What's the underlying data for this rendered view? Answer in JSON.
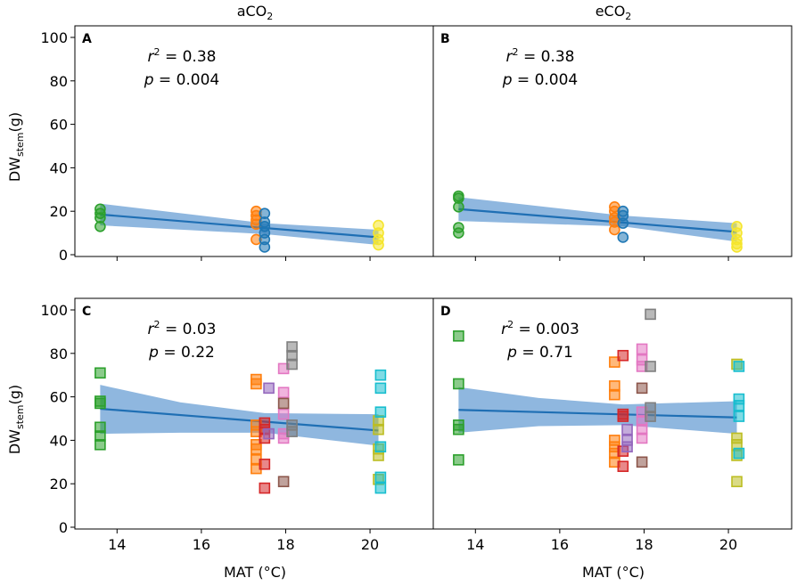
{
  "figure": {
    "column_titles": {
      "left": "aCO",
      "left_sub": "2",
      "right": "eCO",
      "right_sub": "2"
    },
    "xlabel": "MAT (°C)",
    "ylabel_main": "DW",
    "ylabel_sub": "stem",
    "ylabel_unit": "(g)",
    "x_ticks": [
      14,
      16,
      18,
      20
    ],
    "y_ticks": [
      0,
      20,
      40,
      60,
      80,
      100
    ],
    "colors": {
      "green": "#2ca02c",
      "orange": "#ff7f0e",
      "blue": "#1f77b4",
      "yellow": "#f5e52c",
      "red": "#d62728",
      "purple": "#9467bd",
      "brown": "#8c564b",
      "pink": "#e377c2",
      "gray": "#7f7f7f",
      "olive": "#bcbd22",
      "cyan": "#17becf",
      "fit_line": "#1f6fb4",
      "band": "#6a9fd4"
    }
  },
  "chart_data": [
    {
      "type": "scatter",
      "panel": "A",
      "marker": "circle",
      "xlim": [
        13.0,
        21.5
      ],
      "ylim": [
        0,
        100
      ],
      "r2_label": "r",
      "r2_value": "= 0.38",
      "p_label": "p",
      "p_value": "= 0.004",
      "fit": {
        "x": [
          13.6,
          20.2
        ],
        "y": [
          18.5,
          8.0
        ]
      },
      "band": {
        "x": [
          13.6,
          17.5,
          20.2
        ],
        "upper": [
          23.5,
          14.5,
          11.5
        ],
        "lower": [
          13.5,
          9.5,
          4.5
        ]
      },
      "points": [
        {
          "x": 13.6,
          "y": 21,
          "c": "green"
        },
        {
          "x": 13.6,
          "y": 19,
          "c": "green"
        },
        {
          "x": 13.6,
          "y": 17,
          "c": "green"
        },
        {
          "x": 13.6,
          "y": 13,
          "c": "green"
        },
        {
          "x": 17.3,
          "y": 20,
          "c": "orange"
        },
        {
          "x": 17.3,
          "y": 18,
          "c": "orange"
        },
        {
          "x": 17.3,
          "y": 16,
          "c": "orange"
        },
        {
          "x": 17.3,
          "y": 14,
          "c": "orange"
        },
        {
          "x": 17.3,
          "y": 7,
          "c": "orange"
        },
        {
          "x": 17.5,
          "y": 19,
          "c": "blue"
        },
        {
          "x": 17.5,
          "y": 15,
          "c": "blue"
        },
        {
          "x": 17.5,
          "y": 13,
          "c": "blue"
        },
        {
          "x": 17.5,
          "y": 10,
          "c": "blue"
        },
        {
          "x": 17.5,
          "y": 7,
          "c": "blue"
        },
        {
          "x": 17.5,
          "y": 3.5,
          "c": "blue"
        },
        {
          "x": 20.2,
          "y": 13.5,
          "c": "yellow"
        },
        {
          "x": 20.2,
          "y": 10,
          "c": "yellow"
        },
        {
          "x": 20.2,
          "y": 7,
          "c": "yellow"
        },
        {
          "x": 20.2,
          "y": 4.5,
          "c": "yellow"
        }
      ]
    },
    {
      "type": "scatter",
      "panel": "B",
      "marker": "circle",
      "xlim": [
        13.0,
        21.5
      ],
      "ylim": [
        0,
        100
      ],
      "r2_label": "r",
      "r2_value": "= 0.38",
      "p_label": "p",
      "p_value": "= 0.004",
      "fit": {
        "x": [
          13.6,
          20.2
        ],
        "y": [
          21.0,
          10.5
        ]
      },
      "band": {
        "x": [
          13.6,
          17.5,
          20.2
        ],
        "upper": [
          26.5,
          18.0,
          14.5
        ],
        "lower": [
          15.5,
          13.0,
          6.0
        ]
      },
      "points": [
        {
          "x": 13.6,
          "y": 27,
          "c": "green"
        },
        {
          "x": 13.6,
          "y": 26,
          "c": "green"
        },
        {
          "x": 13.6,
          "y": 22,
          "c": "green"
        },
        {
          "x": 13.6,
          "y": 12.5,
          "c": "green"
        },
        {
          "x": 13.6,
          "y": 10,
          "c": "green"
        },
        {
          "x": 17.3,
          "y": 22,
          "c": "orange"
        },
        {
          "x": 17.3,
          "y": 20,
          "c": "orange"
        },
        {
          "x": 17.3,
          "y": 17,
          "c": "orange"
        },
        {
          "x": 17.3,
          "y": 15,
          "c": "orange"
        },
        {
          "x": 17.3,
          "y": 11.5,
          "c": "orange"
        },
        {
          "x": 17.5,
          "y": 20,
          "c": "blue"
        },
        {
          "x": 17.5,
          "y": 18,
          "c": "blue"
        },
        {
          "x": 17.5,
          "y": 14.5,
          "c": "blue"
        },
        {
          "x": 17.5,
          "y": 8,
          "c": "blue"
        },
        {
          "x": 20.2,
          "y": 13,
          "c": "yellow"
        },
        {
          "x": 20.2,
          "y": 10,
          "c": "yellow"
        },
        {
          "x": 20.2,
          "y": 7,
          "c": "yellow"
        },
        {
          "x": 20.2,
          "y": 5,
          "c": "yellow"
        },
        {
          "x": 20.2,
          "y": 3.5,
          "c": "yellow"
        }
      ]
    },
    {
      "type": "scatter",
      "panel": "C",
      "marker": "square",
      "xlim": [
        13.0,
        21.5
      ],
      "ylim": [
        0,
        100
      ],
      "r2_label": "r",
      "r2_value": "= 0.03",
      "p_label": "p",
      "p_value": "= 0.22",
      "fit": {
        "x": [
          13.6,
          20.2
        ],
        "y": [
          54.5,
          44.5
        ]
      },
      "band": {
        "x": [
          13.6,
          15.5,
          17.5,
          20.2
        ],
        "upper": [
          65.5,
          57.5,
          52.5,
          52.0
        ],
        "lower": [
          43.0,
          43.5,
          43.5,
          37.5
        ]
      },
      "points": [
        {
          "x": 13.6,
          "y": 71,
          "c": "green"
        },
        {
          "x": 13.6,
          "y": 58,
          "c": "green"
        },
        {
          "x": 13.6,
          "y": 57,
          "c": "green"
        },
        {
          "x": 13.6,
          "y": 46,
          "c": "green"
        },
        {
          "x": 13.6,
          "y": 42,
          "c": "green"
        },
        {
          "x": 13.6,
          "y": 38,
          "c": "green"
        },
        {
          "x": 17.3,
          "y": 68,
          "c": "orange"
        },
        {
          "x": 17.3,
          "y": 66,
          "c": "orange"
        },
        {
          "x": 17.3,
          "y": 47,
          "c": "orange"
        },
        {
          "x": 17.3,
          "y": 44,
          "c": "orange"
        },
        {
          "x": 17.3,
          "y": 38,
          "c": "orange"
        },
        {
          "x": 17.3,
          "y": 36,
          "c": "orange"
        },
        {
          "x": 17.3,
          "y": 31,
          "c": "orange"
        },
        {
          "x": 17.3,
          "y": 27,
          "c": "orange"
        },
        {
          "x": 17.5,
          "y": 48,
          "c": "red"
        },
        {
          "x": 17.5,
          "y": 45,
          "c": "red"
        },
        {
          "x": 17.5,
          "y": 41,
          "c": "red"
        },
        {
          "x": 17.5,
          "y": 29,
          "c": "red"
        },
        {
          "x": 17.5,
          "y": 18,
          "c": "red"
        },
        {
          "x": 17.6,
          "y": 64,
          "c": "purple"
        },
        {
          "x": 17.6,
          "y": 43,
          "c": "purple"
        },
        {
          "x": 17.95,
          "y": 73,
          "c": "pink"
        },
        {
          "x": 17.95,
          "y": 62,
          "c": "pink"
        },
        {
          "x": 17.95,
          "y": 52,
          "c": "pink"
        },
        {
          "x": 17.95,
          "y": 43,
          "c": "pink"
        },
        {
          "x": 17.95,
          "y": 41,
          "c": "pink"
        },
        {
          "x": 17.95,
          "y": 57,
          "c": "brown"
        },
        {
          "x": 17.95,
          "y": 21,
          "c": "brown"
        },
        {
          "x": 18.15,
          "y": 83,
          "c": "gray"
        },
        {
          "x": 18.15,
          "y": 79,
          "c": "gray"
        },
        {
          "x": 18.15,
          "y": 75,
          "c": "gray"
        },
        {
          "x": 18.15,
          "y": 47,
          "c": "gray"
        },
        {
          "x": 18.15,
          "y": 44,
          "c": "gray"
        },
        {
          "x": 20.2,
          "y": 49,
          "c": "olive"
        },
        {
          "x": 20.2,
          "y": 45,
          "c": "olive"
        },
        {
          "x": 20.2,
          "y": 36,
          "c": "olive"
        },
        {
          "x": 20.2,
          "y": 33,
          "c": "olive"
        },
        {
          "x": 20.2,
          "y": 22,
          "c": "olive"
        },
        {
          "x": 20.25,
          "y": 70,
          "c": "cyan"
        },
        {
          "x": 20.25,
          "y": 64,
          "c": "cyan"
        },
        {
          "x": 20.25,
          "y": 53,
          "c": "cyan"
        },
        {
          "x": 20.25,
          "y": 37,
          "c": "cyan"
        },
        {
          "x": 20.25,
          "y": 23,
          "c": "cyan"
        },
        {
          "x": 20.25,
          "y": 18,
          "c": "cyan"
        }
      ]
    },
    {
      "type": "scatter",
      "panel": "D",
      "marker": "square",
      "xlim": [
        13.0,
        21.5
      ],
      "ylim": [
        0,
        100
      ],
      "r2_label": "r",
      "r2_value": "= 0.003",
      "p_label": "p",
      "p_value": "= 0.71",
      "fit": {
        "x": [
          13.6,
          20.2
        ],
        "y": [
          54.0,
          50.5
        ]
      },
      "band": {
        "x": [
          13.6,
          15.5,
          17.5,
          20.2
        ],
        "upper": [
          64.5,
          59.5,
          56.5,
          58.0
        ],
        "lower": [
          43.5,
          46.5,
          47.0,
          43.0
        ]
      },
      "points": [
        {
          "x": 13.6,
          "y": 88,
          "c": "green"
        },
        {
          "x": 13.6,
          "y": 66,
          "c": "green"
        },
        {
          "x": 13.6,
          "y": 47,
          "c": "green"
        },
        {
          "x": 13.6,
          "y": 45,
          "c": "green"
        },
        {
          "x": 13.6,
          "y": 31,
          "c": "green"
        },
        {
          "x": 17.3,
          "y": 76,
          "c": "orange"
        },
        {
          "x": 17.3,
          "y": 65,
          "c": "orange"
        },
        {
          "x": 17.3,
          "y": 61,
          "c": "orange"
        },
        {
          "x": 17.3,
          "y": 40,
          "c": "orange"
        },
        {
          "x": 17.3,
          "y": 37,
          "c": "orange"
        },
        {
          "x": 17.3,
          "y": 34,
          "c": "orange"
        },
        {
          "x": 17.3,
          "y": 30,
          "c": "orange"
        },
        {
          "x": 17.5,
          "y": 79,
          "c": "red"
        },
        {
          "x": 17.5,
          "y": 52,
          "c": "red"
        },
        {
          "x": 17.5,
          "y": 51,
          "c": "red"
        },
        {
          "x": 17.5,
          "y": 35,
          "c": "red"
        },
        {
          "x": 17.5,
          "y": 28,
          "c": "red"
        },
        {
          "x": 17.6,
          "y": 45,
          "c": "purple"
        },
        {
          "x": 17.6,
          "y": 40,
          "c": "purple"
        },
        {
          "x": 17.6,
          "y": 37,
          "c": "purple"
        },
        {
          "x": 17.95,
          "y": 82,
          "c": "pink"
        },
        {
          "x": 17.95,
          "y": 77,
          "c": "pink"
        },
        {
          "x": 17.95,
          "y": 74,
          "c": "pink"
        },
        {
          "x": 17.95,
          "y": 53,
          "c": "pink"
        },
        {
          "x": 17.95,
          "y": 49,
          "c": "pink"
        },
        {
          "x": 17.95,
          "y": 45,
          "c": "pink"
        },
        {
          "x": 17.95,
          "y": 41,
          "c": "pink"
        },
        {
          "x": 17.95,
          "y": 64,
          "c": "brown"
        },
        {
          "x": 17.95,
          "y": 30,
          "c": "brown"
        },
        {
          "x": 18.15,
          "y": 98,
          "c": "gray"
        },
        {
          "x": 18.15,
          "y": 74,
          "c": "gray"
        },
        {
          "x": 18.15,
          "y": 55,
          "c": "gray"
        },
        {
          "x": 18.15,
          "y": 51,
          "c": "gray"
        },
        {
          "x": 20.2,
          "y": 75,
          "c": "olive"
        },
        {
          "x": 20.2,
          "y": 41,
          "c": "olive"
        },
        {
          "x": 20.2,
          "y": 38,
          "c": "olive"
        },
        {
          "x": 20.2,
          "y": 33,
          "c": "olive"
        },
        {
          "x": 20.2,
          "y": 21,
          "c": "olive"
        },
        {
          "x": 20.25,
          "y": 74,
          "c": "cyan"
        },
        {
          "x": 20.25,
          "y": 59,
          "c": "cyan"
        },
        {
          "x": 20.25,
          "y": 56,
          "c": "cyan"
        },
        {
          "x": 20.25,
          "y": 51,
          "c": "cyan"
        },
        {
          "x": 20.25,
          "y": 34,
          "c": "cyan"
        }
      ]
    }
  ]
}
